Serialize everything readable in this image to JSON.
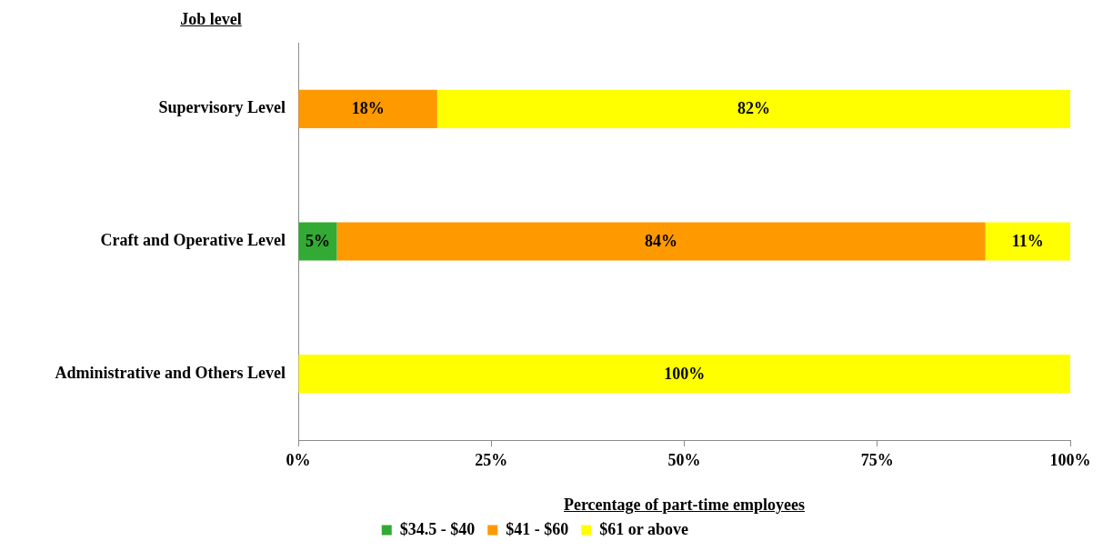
{
  "chart_data": {
    "type": "bar",
    "orientation": "horizontal",
    "stacked": true,
    "ylabel": "Job level",
    "xlabel": "Percentage of part-time employees",
    "categories": [
      "Supervisory Level",
      "Craft and Operative Level",
      "Administrative and Others Level"
    ],
    "series": [
      {
        "name": "$34.5 - $40",
        "color": "#33aa33",
        "values": [
          null,
          5,
          null
        ],
        "value_labels": [
          null,
          "5%",
          null
        ]
      },
      {
        "name": "$41 - $60",
        "color": "#ff9900",
        "values": [
          18,
          84,
          null
        ],
        "value_labels": [
          "18%",
          "84%",
          null
        ]
      },
      {
        "name": "$61 or above",
        "color": "#ffff00",
        "values": [
          82,
          11,
          100
        ],
        "value_labels": [
          "82%",
          "11%",
          "100%"
        ]
      }
    ],
    "xlim": [
      0,
      100
    ],
    "xticks": [
      {
        "value": 0,
        "label": "0%"
      },
      {
        "value": 25,
        "label": "25%"
      },
      {
        "value": 50,
        "label": "50%"
      },
      {
        "value": 75,
        "label": "75%"
      },
      {
        "value": 100,
        "label": "100%"
      }
    ],
    "legend": "bottom"
  }
}
